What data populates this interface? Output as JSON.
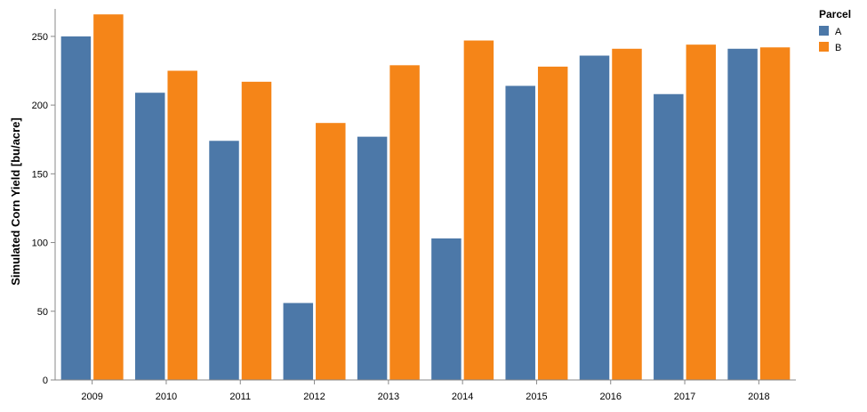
{
  "chart_data": {
    "type": "bar",
    "ylabel": "Simulated Corn Yield [bu/acre]",
    "xlabel": "",
    "ylim": [
      0,
      270
    ],
    "yticks": [
      0,
      50,
      100,
      150,
      200,
      250
    ],
    "grid": false,
    "categories": [
      "2009",
      "2010",
      "2011",
      "2012",
      "2013",
      "2014",
      "2015",
      "2016",
      "2017",
      "2018"
    ],
    "legend": {
      "title": "Parcel",
      "placement": "top-right"
    },
    "series": [
      {
        "name": "A",
        "color": "#4c78a8",
        "values": [
          250,
          209,
          174,
          56,
          177,
          103,
          214,
          236,
          208,
          241
        ]
      },
      {
        "name": "B",
        "color": "#f58518",
        "values": [
          266,
          225,
          217,
          187,
          229,
          247,
          228,
          241,
          244,
          242
        ]
      }
    ]
  }
}
